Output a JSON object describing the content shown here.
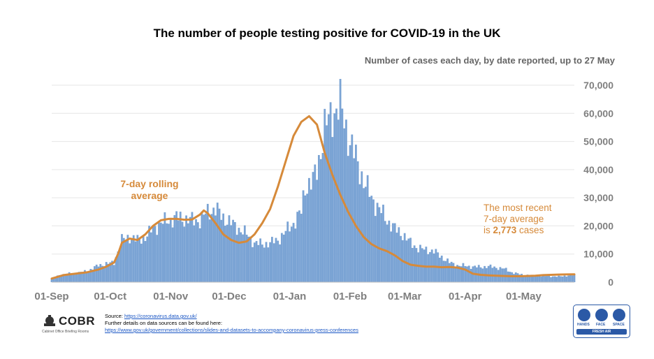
{
  "title": "The number of people testing positive for COVID-19 in the UK",
  "subtitle": "Number of cases each day, by date reported, up to 27 May",
  "chart_data": {
    "type": "bar",
    "series": [
      {
        "name": "Daily cases",
        "kind": "bar",
        "color": "#7aa3d4",
        "x": [
          0,
          4,
          8,
          12,
          16,
          20,
          24,
          28,
          32,
          36,
          40,
          44,
          48,
          52,
          56,
          60,
          64,
          68,
          72,
          76,
          80,
          84,
          88,
          92,
          96,
          100,
          104,
          108,
          112,
          116,
          120,
          124,
          128,
          130,
          132,
          134,
          136,
          138,
          140,
          144,
          148,
          152,
          156,
          160,
          164,
          168,
          172,
          176,
          180,
          184,
          188,
          192,
          196,
          200,
          204,
          208,
          212,
          216,
          220,
          224,
          228,
          232,
          236,
          240,
          244,
          248,
          252,
          256,
          260,
          264,
          268
        ],
        "values": [
          1300,
          2500,
          3000,
          3200,
          3600,
          4500,
          6000,
          6500,
          7000,
          15000,
          16000,
          15000,
          16000,
          19000,
          21000,
          22000,
          23000,
          22500,
          22000,
          22000,
          25000,
          26000,
          23000,
          21000,
          19000,
          17000,
          14000,
          13500,
          14000,
          15000,
          18000,
          21000,
          25000,
          34000,
          35000,
          36000,
          40000,
          47000,
          55000,
          60000,
          63000,
          52000,
          44000,
          36000,
          30000,
          26000,
          22000,
          19000,
          17000,
          14000,
          12000,
          11500,
          11000,
          9000,
          7000,
          6000,
          5800,
          5500,
          5400,
          5600,
          5200,
          4800,
          3500,
          2800,
          2500,
          2300,
          2200,
          2100,
          2000,
          2300,
          2600
        ]
      },
      {
        "name": "7-day rolling average",
        "kind": "line",
        "color": "#d68a3a",
        "x": [
          0,
          6,
          12,
          18,
          24,
          28,
          32,
          34,
          36,
          40,
          44,
          48,
          52,
          56,
          60,
          64,
          68,
          72,
          76,
          78,
          80,
          84,
          88,
          92,
          96,
          100,
          104,
          108,
          112,
          116,
          120,
          124,
          128,
          132,
          136,
          140,
          144,
          148,
          152,
          156,
          160,
          164,
          168,
          172,
          176,
          180,
          184,
          188,
          192,
          196,
          200,
          204,
          208,
          212,
          216,
          220,
          224,
          228,
          232,
          236,
          240,
          244,
          248,
          252,
          256,
          260,
          264,
          268
        ],
        "values": [
          1300,
          2500,
          3000,
          3500,
          4500,
          5500,
          7000,
          10000,
          14000,
          15500,
          15000,
          17000,
          20000,
          22000,
          22500,
          22500,
          22200,
          22300,
          24000,
          25500,
          24500,
          21000,
          17000,
          15000,
          14000,
          14500,
          17000,
          21000,
          26000,
          34000,
          43000,
          52000,
          57000,
          59000,
          56000,
          46000,
          38000,
          31000,
          25000,
          20000,
          16000,
          13500,
          12000,
          11000,
          9500,
          7500,
          6200,
          5800,
          5500,
          5500,
          5300,
          5400,
          5200,
          4500,
          3000,
          2600,
          2400,
          2300,
          2200,
          2100,
          2100,
          2200,
          2300,
          2500,
          2600,
          2700,
          2750,
          2773
        ]
      }
    ],
    "xlabels": [
      "01-Sep",
      "01-Oct",
      "01-Nov",
      "01-Dec",
      "01-Jan",
      "01-Feb",
      "01-Mar",
      "01-Apr",
      "01-May"
    ],
    "xlabel_days": [
      0,
      30,
      61,
      91,
      122,
      153,
      181,
      212,
      242
    ],
    "x_range_days": [
      0,
      268
    ],
    "ylim": [
      0,
      70000
    ],
    "yticks": [
      0,
      10000,
      20000,
      30000,
      40000,
      50000,
      60000,
      70000
    ],
    "ytick_labels": [
      "0",
      "10,000",
      "20,000",
      "30,000",
      "40,000",
      "50,000",
      "60,000",
      "70,000"
    ],
    "y_axis_side": "right",
    "grid": true,
    "annotations": {
      "rolling": [
        "7-day rolling",
        "average"
      ],
      "recent_line1": "The most recent",
      "recent_line2": "7-day average",
      "recent_prefix": "is ",
      "recent_value": "2,773",
      "recent_suffix": " cases"
    }
  },
  "footer": {
    "logo_text": "COBR",
    "logo_sub": "Cabinet Office Briefing Rooms",
    "source_label": "Source: ",
    "source_link": "https://coronavirus.data.gov.uk/",
    "further_details": "Further details on data sources can be found here:",
    "further_link": "https://www.gov.uk/government/collections/slides-and-datasets-to-accompany-coronavirus-press-conferences"
  },
  "badge": {
    "items": [
      "HANDS",
      "FACE",
      "SPACE"
    ],
    "bottom": "FRESH AIR"
  }
}
